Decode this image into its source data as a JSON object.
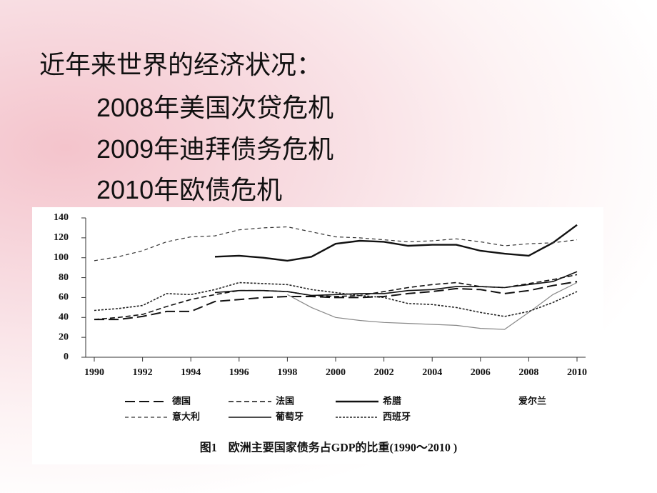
{
  "slide": {
    "heading": "近年来世界的经济状况：",
    "items": [
      "2008年美国次贷危机",
      "2009年迪拜债务危机",
      "2010年欧债危机"
    ]
  },
  "chart_data": {
    "type": "line",
    "caption": "图1　欧洲主要国家债务占GDP的比重(1990～2010 )",
    "x": [
      1990,
      1991,
      1992,
      1993,
      1994,
      1995,
      1996,
      1997,
      1998,
      1999,
      2000,
      2001,
      2002,
      2003,
      2004,
      2005,
      2006,
      2007,
      2008,
      2009,
      2010
    ],
    "xlim": [
      1990,
      2010
    ],
    "xticks": [
      1990,
      1992,
      1994,
      1996,
      1998,
      2000,
      2002,
      2004,
      2006,
      2008,
      2010
    ],
    "ylim": [
      0,
      140
    ],
    "yticks": [
      0,
      20,
      40,
      60,
      80,
      100,
      120,
      140
    ],
    "series": [
      {
        "name": "德国",
        "color": "#111111",
        "dash": "14,6",
        "width": 2,
        "values": [
          38,
          38,
          41,
          46,
          46,
          56,
          58,
          60,
          61,
          61,
          60,
          60,
          61,
          64,
          66,
          69,
          68,
          64,
          67,
          72,
          76
        ]
      },
      {
        "name": "法国",
        "color": "#111111",
        "dash": "7,4",
        "width": 1.6,
        "values": [
          38,
          40,
          43,
          51,
          58,
          63,
          67,
          67,
          66,
          62,
          61,
          62,
          66,
          70,
          73,
          75,
          71,
          70,
          74,
          78,
          83
        ]
      },
      {
        "name": "希腊",
        "color": "#111111",
        "dash": "none",
        "width": 2.4,
        "values": [
          null,
          null,
          null,
          null,
          null,
          101,
          102,
          100,
          97,
          101,
          114,
          117,
          116,
          112,
          113,
          113,
          107,
          104,
          102,
          115,
          133
        ]
      },
      {
        "name": "爱尔兰",
        "color": "#888888",
        "dash": "none",
        "width": 1.2,
        "values": [
          null,
          null,
          null,
          null,
          null,
          null,
          null,
          null,
          63,
          50,
          40,
          37,
          35,
          34,
          33,
          32,
          29,
          28,
          45,
          63,
          75
        ]
      },
      {
        "name": "意大利",
        "color": "#333333",
        "dash": "5,4",
        "width": 1.2,
        "values": [
          97,
          101,
          107,
          116,
          121,
          122,
          128,
          130,
          131,
          126,
          121,
          120,
          118,
          116,
          117,
          119,
          116,
          112,
          114,
          115,
          118
        ]
      },
      {
        "name": "葡萄牙",
        "color": "#111111",
        "dash": "none",
        "width": 1.6,
        "values": [
          null,
          null,
          null,
          null,
          null,
          65,
          67,
          67,
          66,
          62,
          63,
          64,
          64,
          67,
          68,
          71,
          71,
          70,
          73,
          76,
          86
        ]
      },
      {
        "name": "西班牙",
        "color": "#222222",
        "dash": "3,2",
        "width": 1.6,
        "values": [
          47,
          49,
          52,
          64,
          63,
          68,
          75,
          74,
          73,
          68,
          65,
          62,
          60,
          54,
          53,
          50,
          45,
          41,
          46,
          55,
          66
        ]
      }
    ]
  }
}
